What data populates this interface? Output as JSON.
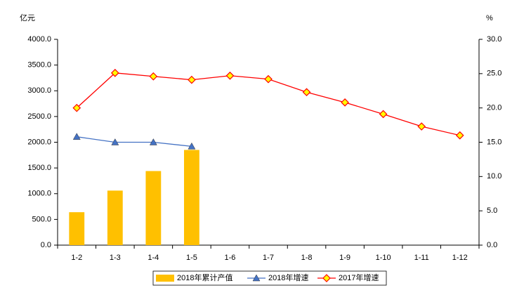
{
  "chart_data": {
    "type": "bar",
    "y_unit": "亿元",
    "y2_unit": "%",
    "categories": [
      "1-2",
      "1-3",
      "1-4",
      "1-5",
      "1-6",
      "1-7",
      "1-8",
      "1-9",
      "1-10",
      "1-11",
      "1-12"
    ],
    "series": [
      {
        "name": "2018年累计产值",
        "type": "bar",
        "color": "#ffc000",
        "values": [
          640,
          1060,
          1440,
          1850,
          null,
          null,
          null,
          null,
          null,
          null,
          null
        ]
      },
      {
        "name": "2018年增速",
        "type": "line",
        "axis": "y2",
        "color": "#4472c4",
        "marker": "triangle",
        "values": [
          15.8,
          15.0,
          15.0,
          14.4,
          null,
          null,
          null,
          null,
          null,
          null,
          null
        ]
      },
      {
        "name": "2017年增速",
        "type": "line",
        "axis": "y2",
        "color": "#ff0000",
        "marker": "diamond",
        "values": [
          20.0,
          25.1,
          24.6,
          24.1,
          24.7,
          24.2,
          22.3,
          20.8,
          19.1,
          17.3,
          16.0
        ]
      }
    ],
    "ylim": [
      0,
      4000
    ],
    "yticks": [
      {
        "value": 0,
        "label": "0.0"
      },
      {
        "value": 500,
        "label": "500.0"
      },
      {
        "value": 1000,
        "label": "1000.0"
      },
      {
        "value": 1500,
        "label": "1500.0"
      },
      {
        "value": 2000,
        "label": "2000.0"
      },
      {
        "value": 2500,
        "label": "2500.0"
      },
      {
        "value": 3000,
        "label": "3000.0"
      },
      {
        "value": 3500,
        "label": "3500.0"
      },
      {
        "value": 4000,
        "label": "4000.0"
      }
    ],
    "y2lim": [
      0,
      30
    ],
    "y2ticks": [
      {
        "value": 0,
        "label": "0.0"
      },
      {
        "value": 5,
        "label": "5.0"
      },
      {
        "value": 10,
        "label": "10.0"
      },
      {
        "value": 15,
        "label": "15.0"
      },
      {
        "value": 20,
        "label": "20.0"
      },
      {
        "value": 25,
        "label": "25.0"
      },
      {
        "value": 30,
        "label": "30.0"
      }
    ],
    "grid": false
  }
}
